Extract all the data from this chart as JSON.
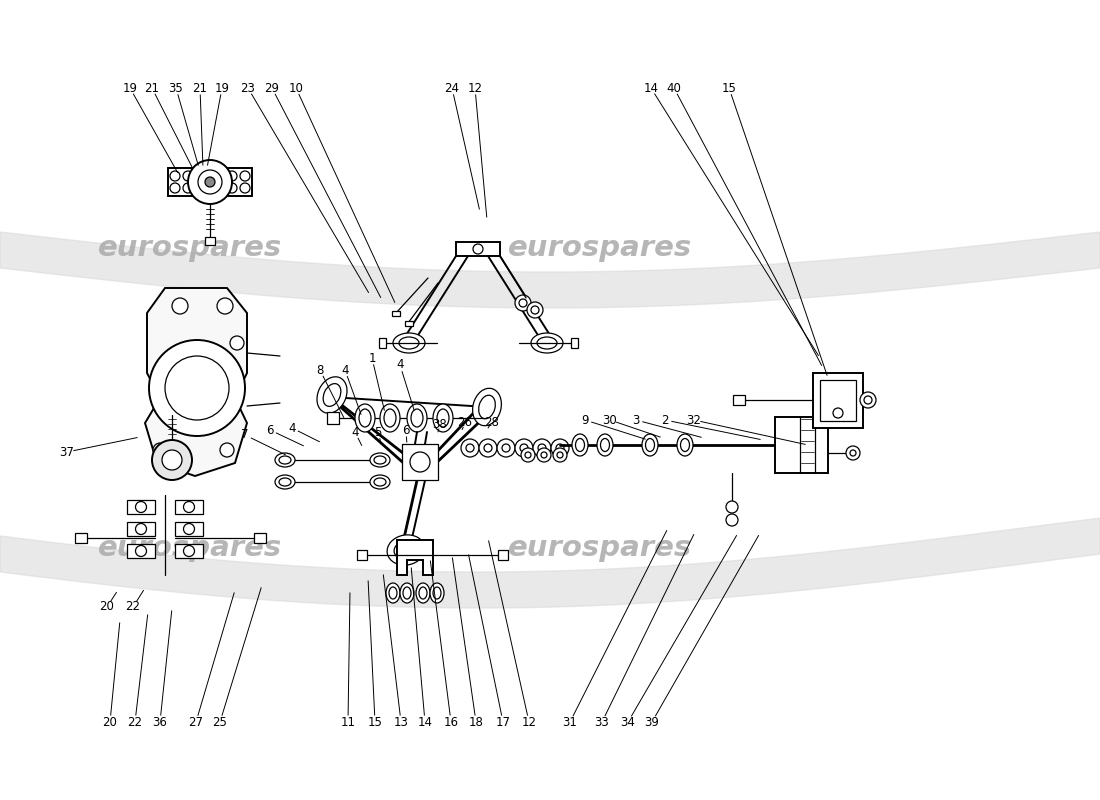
{
  "bg_color": "#ffffff",
  "line_color": "#000000",
  "watermark": "eurospares",
  "wm_color": "#aaaaaa",
  "top_labels": [
    [
      130,
      88,
      179,
      175,
      "19"
    ],
    [
      152,
      88,
      194,
      171,
      "21"
    ],
    [
      176,
      88,
      199,
      168,
      "35"
    ],
    [
      200,
      88,
      203,
      168,
      "21"
    ],
    [
      222,
      88,
      207,
      168,
      "19"
    ],
    [
      248,
      88,
      370,
      295,
      "23"
    ],
    [
      272,
      88,
      382,
      300,
      "29"
    ],
    [
      296,
      88,
      396,
      305,
      "10"
    ],
    [
      452,
      88,
      480,
      212,
      "24"
    ],
    [
      475,
      88,
      487,
      220,
      "12"
    ],
    [
      651,
      88,
      820,
      358,
      "14"
    ],
    [
      674,
      88,
      823,
      368,
      "40"
    ],
    [
      729,
      88,
      828,
      378,
      "15"
    ]
  ],
  "bottom_labels": [
    [
      110,
      722,
      120,
      620,
      "20"
    ],
    [
      135,
      722,
      148,
      612,
      "22"
    ],
    [
      160,
      722,
      172,
      608,
      "36"
    ],
    [
      196,
      722,
      235,
      590,
      "27"
    ],
    [
      220,
      722,
      262,
      585,
      "25"
    ],
    [
      348,
      722,
      350,
      590,
      "11"
    ],
    [
      375,
      722,
      368,
      578,
      "15"
    ],
    [
      401,
      722,
      383,
      572,
      "13"
    ],
    [
      425,
      722,
      411,
      565,
      "14"
    ],
    [
      451,
      722,
      430,
      558,
      "16"
    ],
    [
      476,
      722,
      452,
      555,
      "18"
    ],
    [
      503,
      722,
      468,
      552,
      "17"
    ],
    [
      529,
      722,
      488,
      538,
      "12"
    ],
    [
      570,
      722,
      668,
      528,
      "31"
    ],
    [
      602,
      722,
      695,
      532,
      "33"
    ],
    [
      628,
      722,
      738,
      533,
      "34"
    ],
    [
      652,
      722,
      760,
      533,
      "39"
    ]
  ],
  "left_labels": [
    [
      67,
      452,
      140,
      437,
      "37"
    ],
    [
      107,
      607,
      118,
      590,
      "20"
    ],
    [
      133,
      607,
      145,
      588,
      "22"
    ]
  ],
  "mid_labels": [
    [
      245,
      435,
      288,
      456,
      "7"
    ],
    [
      270,
      430,
      306,
      447,
      "6"
    ],
    [
      292,
      428,
      322,
      443,
      "4"
    ]
  ],
  "center_top_labels": [
    [
      320,
      370,
      345,
      420,
      "8"
    ],
    [
      345,
      370,
      362,
      417,
      "4"
    ],
    [
      372,
      358,
      385,
      413,
      "1"
    ],
    [
      400,
      365,
      415,
      413,
      "4"
    ]
  ],
  "center_mid_labels": [
    [
      355,
      432,
      363,
      448,
      "4"
    ],
    [
      378,
      432,
      382,
      447,
      "5"
    ],
    [
      406,
      430,
      407,
      445,
      "6"
    ],
    [
      440,
      425,
      438,
      432,
      "38"
    ],
    [
      465,
      423,
      462,
      430,
      "26"
    ],
    [
      492,
      422,
      488,
      428,
      "28"
    ]
  ],
  "right_labels": [
    [
      585,
      420,
      648,
      440,
      "9"
    ],
    [
      610,
      420,
      663,
      438,
      "30"
    ],
    [
      636,
      420,
      704,
      438,
      "3"
    ],
    [
      665,
      420,
      763,
      440,
      "2"
    ],
    [
      694,
      420,
      808,
      445,
      "32"
    ]
  ]
}
